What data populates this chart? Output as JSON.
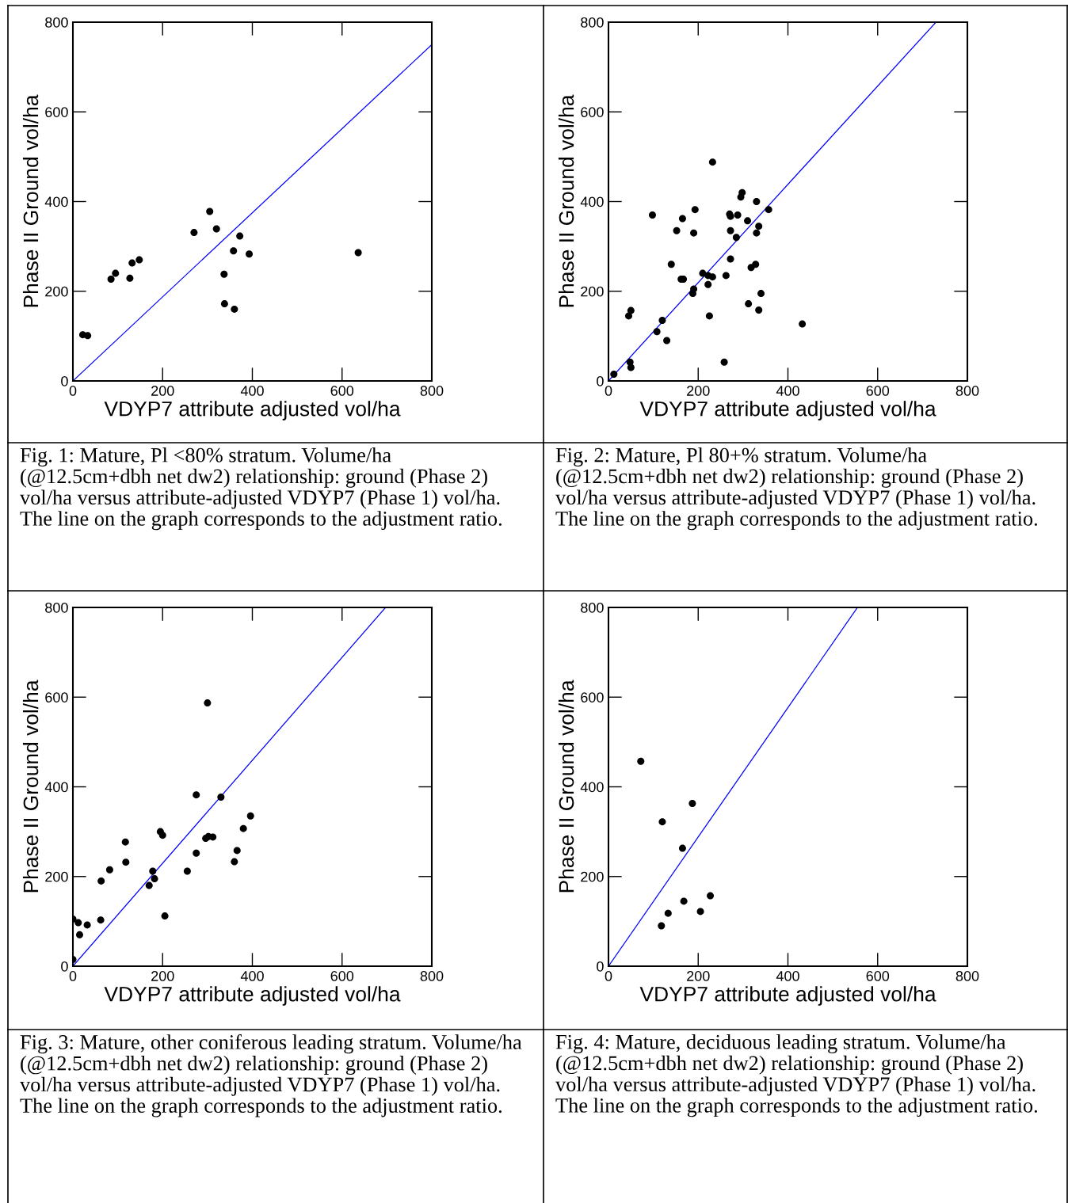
{
  "chart_data": [
    {
      "type": "scatter",
      "xlabel": "VDYP7 attribute adjusted vol/ha",
      "ylabel": "Phase II Ground vol/ha",
      "xlim": [
        0,
        800
      ],
      "ylim": [
        0,
        800
      ],
      "xticks": [
        0,
        200,
        400,
        600,
        800
      ],
      "yticks": [
        0,
        200,
        400,
        600,
        800
      ],
      "grid": false,
      "legend": false,
      "series": [
        {
          "type": "scatter",
          "marker": "circle",
          "color": "#000000",
          "x": [
            22,
            33,
            85,
            95,
            127,
            132,
            148,
            270,
            305,
            320,
            372,
            358,
            337,
            338,
            360,
            393,
            636
          ],
          "values": [
            103,
            101,
            227,
            240,
            229,
            263,
            270,
            331,
            378,
            339,
            323,
            290,
            238,
            172,
            160,
            283,
            286
          ]
        },
        {
          "type": "line",
          "color": "#0000ff",
          "x": [
            0,
            800
          ],
          "values": [
            0,
            750
          ]
        }
      ],
      "annotations": [
        "Fig. 1: Mature, Pl <80% stratum. Volume/ha (@12.5cm+dbh net dw2) relationship: ground (Phase 2) vol/ha versus attribute-adjusted VDYP7 (Phase 1) vol/ha. The line on the graph corresponds to the adjustment ratio."
      ]
    },
    {
      "type": "scatter",
      "xlabel": "VDYP7 attribute adjusted vol/ha",
      "ylabel": "Phase II Ground vol/ha",
      "xlim": [
        0,
        800
      ],
      "ylim": [
        0,
        800
      ],
      "xticks": [
        0,
        200,
        400,
        600,
        800
      ],
      "yticks": [
        0,
        200,
        400,
        600,
        800
      ],
      "grid": false,
      "legend": false,
      "series": [
        {
          "type": "scatter",
          "marker": "circle",
          "color": "#000000",
          "x": [
            12,
            48,
            50,
            45,
            50,
            108,
            120,
            130,
            98,
            140,
            152,
            162,
            167,
            165,
            188,
            190,
            190,
            193,
            210,
            222,
            222,
            232,
            225,
            232,
            258,
            262,
            270,
            272,
            272,
            272,
            285,
            288,
            295,
            298,
            310,
            312,
            318,
            328,
            330,
            330,
            335,
            335,
            340,
            357,
            432
          ],
          "values": [
            15,
            42,
            30,
            145,
            157,
            110,
            135,
            90,
            370,
            260,
            335,
            227,
            227,
            362,
            195,
            205,
            330,
            382,
            240,
            235,
            215,
            232,
            145,
            488,
            42,
            235,
            372,
            367,
            335,
            272,
            320,
            370,
            410,
            420,
            357,
            172,
            253,
            260,
            330,
            400,
            158,
            345,
            195,
            382,
            127
          ]
        },
        {
          "type": "line",
          "color": "#0000ff",
          "x": [
            0,
            730
          ],
          "values": [
            0,
            800
          ]
        }
      ],
      "annotations": [
        "Fig. 2: Mature, Pl 80+% stratum. Volume/ha (@12.5cm+dbh net dw2) relationship: ground (Phase 2) vol/ha versus attribute-adjusted VDYP7 (Phase 1) vol/ha. The line on the graph corresponds to the adjustment ratio."
      ]
    },
    {
      "type": "scatter",
      "xlabel": "VDYP7 attribute adjusted vol/ha",
      "ylabel": "Phase II Ground vol/ha",
      "xlim": [
        0,
        800
      ],
      "ylim": [
        0,
        800
      ],
      "xticks": [
        0,
        200,
        400,
        600,
        800
      ],
      "yticks": [
        0,
        200,
        400,
        600,
        800
      ],
      "grid": false,
      "legend": false,
      "series": [
        {
          "type": "scatter",
          "marker": "circle",
          "color": "#000000",
          "x": [
            0,
            12,
            15,
            32,
            0,
            62,
            63,
            82,
            117,
            118,
            170,
            178,
            182,
            195,
            200,
            205,
            255,
            275,
            275,
            296,
            300,
            302,
            312,
            330,
            360,
            366,
            380,
            396
          ],
          "values": [
            105,
            97,
            70,
            92,
            15,
            103,
            190,
            215,
            277,
            232,
            180,
            212,
            195,
            300,
            292,
            112,
            212,
            382,
            252,
            285,
            587,
            289,
            288,
            377,
            233,
            258,
            307,
            335
          ]
        },
        {
          "type": "line",
          "color": "#0000ff",
          "x": [
            0,
            697
          ],
          "values": [
            0,
            800
          ]
        }
      ],
      "annotations": [
        "Fig. 3: Mature, other coniferous leading stratum. Volume/ha (@12.5cm+dbh net dw2) relationship: ground (Phase 2) vol/ha versus attribute-adjusted VDYP7 (Phase 1) vol/ha. The line on the graph corresponds to the adjustment ratio."
      ]
    },
    {
      "type": "scatter",
      "xlabel": "VDYP7 attribute adjusted vol/ha",
      "ylabel": "Phase II Ground vol/ha",
      "xlim": [
        0,
        800
      ],
      "ylim": [
        0,
        800
      ],
      "xticks": [
        0,
        200,
        400,
        600,
        800
      ],
      "yticks": [
        0,
        200,
        400,
        600,
        800
      ],
      "grid": false,
      "legend": false,
      "series": [
        {
          "type": "scatter",
          "marker": "circle",
          "color": "#000000",
          "x": [
            72,
            120,
            118,
            133,
            165,
            168,
            187,
            205,
            227
          ],
          "values": [
            457,
            322,
            90,
            118,
            263,
            145,
            363,
            122,
            157
          ]
        },
        {
          "type": "line",
          "color": "#0000ff",
          "x": [
            0,
            555
          ],
          "values": [
            0,
            800
          ]
        }
      ],
      "annotations": [
        "Fig. 4: Mature, deciduous leading stratum. Volume/ha (@12.5cm+dbh net dw2) relationship: ground (Phase 2) vol/ha versus attribute-adjusted VDYP7 (Phase 1) vol/ha. The line on the graph corresponds to the adjustment ratio."
      ]
    }
  ]
}
